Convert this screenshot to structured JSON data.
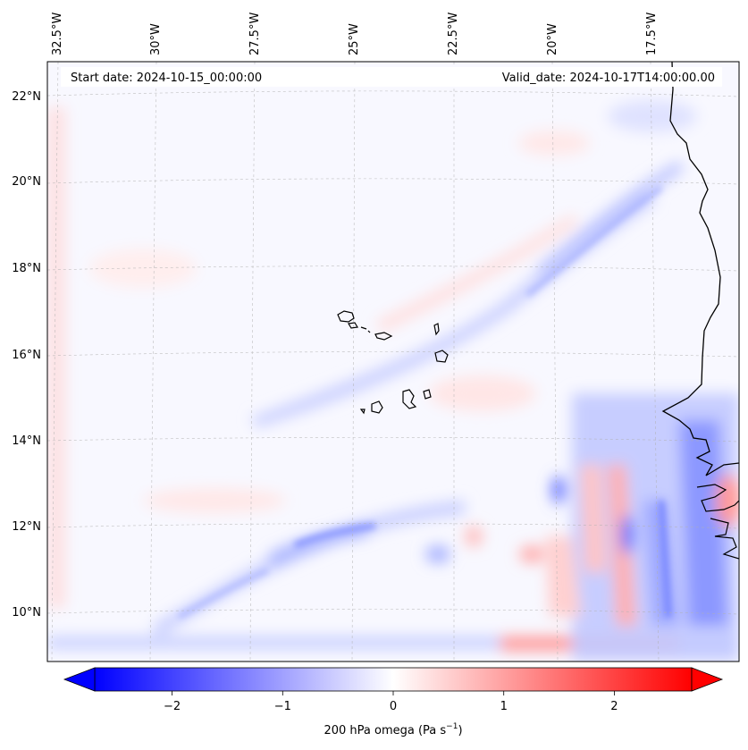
{
  "banner": {
    "start_date": "Start date: 2024-10-15_00:00:00",
    "valid_date": "Valid_date: 2024-10-17T14:00:00.00"
  },
  "axes": {
    "lon_labels": [
      "32.5°W",
      "30°W",
      "27.5°W",
      "25°W",
      "22.5°W",
      "20°W",
      "17.5°W"
    ],
    "lat_labels": [
      "22°N",
      "20°N",
      "18°N",
      "16°N",
      "14°N",
      "12°N",
      "10°N"
    ]
  },
  "colorbar": {
    "min": -2.7,
    "max": 2.7,
    "ticks": [
      -2,
      -1,
      0,
      1,
      2
    ],
    "tick_labels": [
      "−2",
      "−1",
      "0",
      "1",
      "2"
    ],
    "label_main": "200 hPa omega (Pa s",
    "label_sup": "−1",
    "label_end": ")",
    "low_color": "#0000ff",
    "high_color": "#ff0000"
  },
  "colors": {
    "coastline": "#000000",
    "gridline": "#b0b0b0",
    "base_field": "#f8f8ff"
  }
}
